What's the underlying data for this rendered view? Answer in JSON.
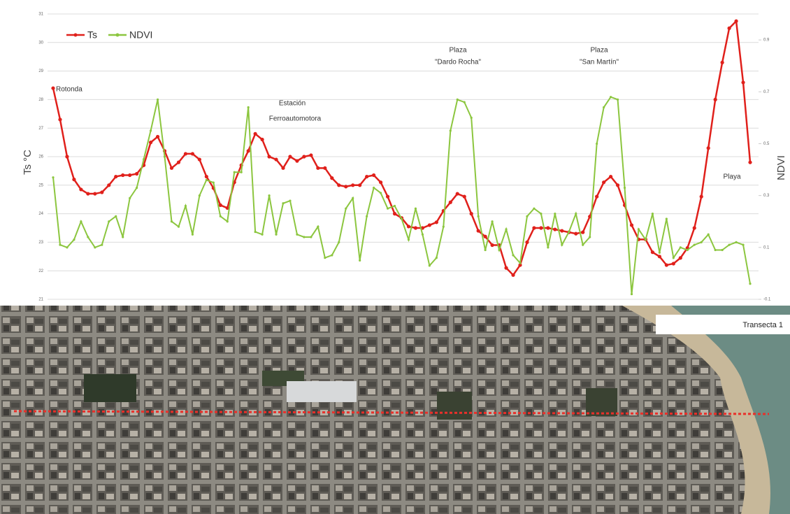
{
  "chart_data": {
    "type": "line",
    "y_label": "Ts °C",
    "y2_label": "NDVI",
    "ylim": [
      21,
      31
    ],
    "yticks": [
      21,
      22,
      23,
      24,
      25,
      26,
      27,
      28,
      29,
      30,
      31
    ],
    "y2lim": [
      -0.1,
      1.0
    ],
    "y2ticks": [
      -0.1,
      0.1,
      0.3,
      0.5,
      0.7,
      0.9
    ],
    "grid": true,
    "legend": "top-left",
    "annotations": [
      "Rotonda",
      "Estación",
      "Ferroautomotora",
      "Plaza",
      "\"Dardo Rocha\"",
      "Plaza",
      "\"San Martín\"",
      "Playa"
    ],
    "series": [
      {
        "name": "Ts",
        "color": "#e0201b",
        "values": [
          28.4,
          27.3,
          26.0,
          25.2,
          24.85,
          24.7,
          24.7,
          24.75,
          25.0,
          25.3,
          25.35,
          25.35,
          25.4,
          25.7,
          26.5,
          26.7,
          26.2,
          25.6,
          25.8,
          26.1,
          26.1,
          25.9,
          25.3,
          24.9,
          24.3,
          24.2,
          25.1,
          25.7,
          26.2,
          26.8,
          26.6,
          26.0,
          25.9,
          25.6,
          26.0,
          25.85,
          26.0,
          26.05,
          25.6,
          25.6,
          25.25,
          25.0,
          24.95,
          25.0,
          25.0,
          25.3,
          25.35,
          25.1,
          24.6,
          24.0,
          23.85,
          23.55,
          23.5,
          23.5,
          23.6,
          23.7,
          24.1,
          24.4,
          24.7,
          24.6,
          24.0,
          23.4,
          23.2,
          22.9,
          22.9,
          22.1,
          21.85,
          22.2,
          23.0,
          23.5,
          23.5,
          23.5,
          23.45,
          23.4,
          23.35,
          23.3,
          23.35,
          23.9,
          24.6,
          25.1,
          25.3,
          25.0,
          24.3,
          23.6,
          23.1,
          23.1,
          22.65,
          22.5,
          22.2,
          22.25,
          22.45,
          22.8,
          23.5,
          24.6,
          26.3,
          28.0,
          29.3,
          30.5,
          30.75,
          28.6,
          25.8
        ]
      },
      {
        "name": "NDVI",
        "color": "#8cc63f",
        "axis": "y2",
        "values": [
          0.37,
          0.11,
          0.1,
          0.13,
          0.2,
          0.14,
          0.1,
          0.11,
          0.2,
          0.22,
          0.14,
          0.29,
          0.33,
          0.44,
          0.55,
          0.67,
          0.45,
          0.2,
          0.18,
          0.26,
          0.15,
          0.3,
          0.36,
          0.35,
          0.22,
          0.2,
          0.39,
          0.39,
          0.64,
          0.16,
          0.15,
          0.3,
          0.15,
          0.27,
          0.28,
          0.15,
          0.14,
          0.14,
          0.18,
          0.06,
          0.07,
          0.12,
          0.25,
          0.29,
          0.05,
          0.22,
          0.33,
          0.31,
          0.25,
          0.26,
          0.21,
          0.13,
          0.25,
          0.15,
          0.03,
          0.06,
          0.18,
          0.55,
          0.67,
          0.66,
          0.6,
          0.22,
          0.09,
          0.2,
          0.09,
          0.17,
          0.07,
          0.04,
          0.22,
          0.25,
          0.23,
          0.1,
          0.23,
          0.11,
          0.16,
          0.23,
          0.11,
          0.14,
          0.5,
          0.64,
          0.68,
          0.67,
          0.33,
          -0.08,
          0.17,
          0.13,
          0.23,
          0.08,
          0.21,
          0.06,
          0.1,
          0.09,
          0.11,
          0.12,
          0.15,
          0.09,
          0.09,
          0.11,
          0.12,
          0.11,
          -0.04
        ]
      }
    ]
  },
  "map_label": "Transecta 1"
}
